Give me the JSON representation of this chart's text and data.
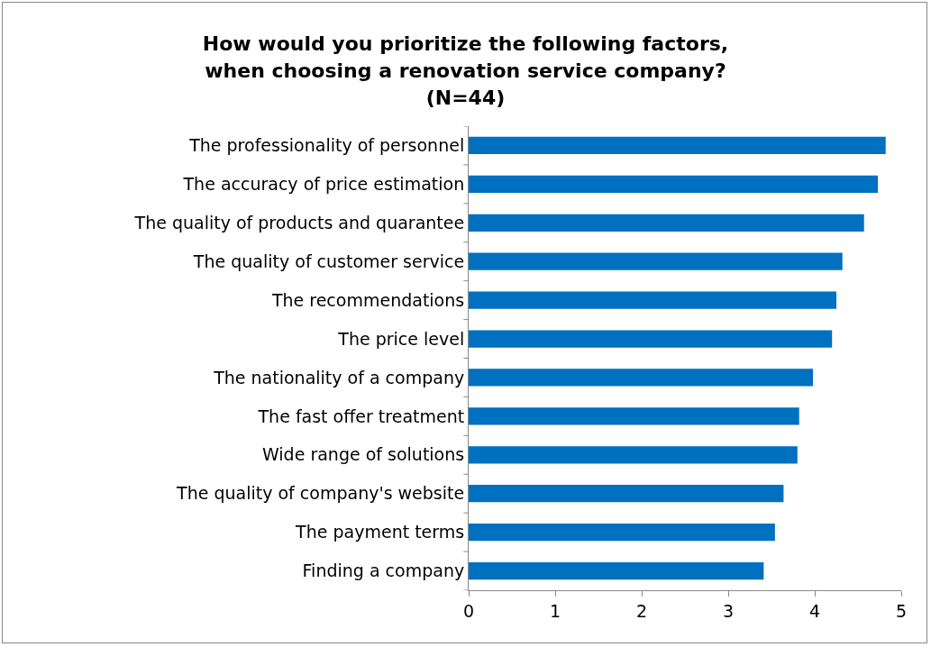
{
  "chart_data": {
    "type": "bar",
    "orientation": "horizontal",
    "title": "How would you prioritize the following factors, when choosing a renovation service company? (N=44)",
    "categories": [
      "The professionality of personnel",
      "The accuracy of price estimation",
      "The quality of products and quarantee",
      "The quality of customer service",
      "The recommendations",
      "The price level",
      "The nationality of a company",
      "The fast offer treatment",
      "Wide range of solutions",
      "The quality of company's website",
      "The payment terms",
      "Finding a company"
    ],
    "values": [
      4.82,
      4.73,
      4.57,
      4.32,
      4.25,
      4.2,
      3.98,
      3.82,
      3.8,
      3.64,
      3.54,
      3.41
    ],
    "color": "#0070c0",
    "xlim": [
      0,
      5
    ],
    "xticks": [
      0,
      1,
      2,
      3,
      4,
      5
    ],
    "grid": false,
    "legend": false
  }
}
